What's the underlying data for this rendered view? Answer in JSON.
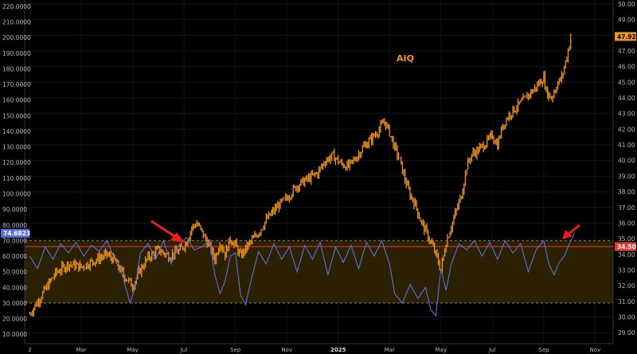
{
  "chart_data": {
    "type": "line",
    "ticker": "AIQ",
    "left_axis": {
      "ticks": [
        "220.0000",
        "210.0000",
        "200.0000",
        "190.0000",
        "180.0000",
        "170.0000",
        "160.0000",
        "150.0000",
        "140.0000",
        "130.0000",
        "120.0000",
        "110.0000",
        "100.0000",
        "90.0000",
        "80.0000",
        "70.0000",
        "60.0000",
        "50.0000",
        "40.0000",
        "30.0000",
        "20.0000",
        "10.0000"
      ],
      "values": [
        220,
        210,
        200,
        190,
        180,
        170,
        160,
        150,
        140,
        130,
        120,
        110,
        100,
        90,
        80,
        70,
        60,
        50,
        40,
        30,
        20,
        10
      ],
      "range": [
        4,
        224
      ]
    },
    "right_axis": {
      "ticks": [
        "50.00",
        "49.00",
        "48.00",
        "47.00",
        "46.00",
        "45.00",
        "44.00",
        "43.00",
        "42.00",
        "41.00",
        "40.00",
        "39.00",
        "38.00",
        "37.00",
        "36.00",
        "35.00",
        "34.00",
        "33.00",
        "32.00",
        "31.00",
        "30.00",
        "29.00"
      ],
      "values": [
        50,
        49,
        48,
        47,
        46,
        45,
        44,
        43,
        42,
        41,
        40,
        39,
        38,
        37,
        36,
        35,
        34,
        33,
        32,
        31,
        30,
        29
      ],
      "range": [
        28.3,
        50.25
      ]
    },
    "x_axis": {
      "labels": [
        "2",
        "Mar",
        "May",
        "Jul",
        "Sep",
        "Nov",
        "2025",
        "Mar",
        "May",
        "Jul",
        "Sep",
        "Nov"
      ],
      "positions": [
        0.0,
        2.0,
        4.0,
        6.0,
        8.0,
        10.0,
        12.0,
        14.0,
        16.0,
        18.0,
        20.0,
        22.0
      ],
      "range": [
        -0.2,
        22.7
      ]
    },
    "badges": {
      "price_last": "47.92",
      "level_right": "34.50",
      "rsi_last": "74.6823"
    },
    "levels": {
      "horizontal_line_right": 34.5,
      "band_upper_left": 70,
      "band_lower_left": 30
    },
    "price_series": {
      "axis": "right",
      "color": "#f0941e",
      "points": [
        [
          0.0,
          30.2
        ],
        [
          0.5,
          31.5
        ],
        [
          1.0,
          32.8
        ],
        [
          1.5,
          33.4
        ],
        [
          2.0,
          33.2
        ],
        [
          2.5,
          33.6
        ],
        [
          3.0,
          34.0
        ],
        [
          3.3,
          33.6
        ],
        [
          3.6,
          32.8
        ],
        [
          4.0,
          32.0
        ],
        [
          4.3,
          33.0
        ],
        [
          4.6,
          33.8
        ],
        [
          5.0,
          34.3
        ],
        [
          5.4,
          33.9
        ],
        [
          5.8,
          34.2
        ],
        [
          6.1,
          34.8
        ],
        [
          6.3,
          35.7
        ],
        [
          6.5,
          36.0
        ],
        [
          6.7,
          35.4
        ],
        [
          7.0,
          34.5
        ],
        [
          7.2,
          33.7
        ],
        [
          7.4,
          34.8
        ],
        [
          7.6,
          34.0
        ],
        [
          7.8,
          35.0
        ],
        [
          8.0,
          34.6
        ],
        [
          8.2,
          33.9
        ],
        [
          8.5,
          34.6
        ],
        [
          8.9,
          35.4
        ],
        [
          9.2,
          36.2
        ],
        [
          9.6,
          37.0
        ],
        [
          10.0,
          37.6
        ],
        [
          10.4,
          38.4
        ],
        [
          10.8,
          38.8
        ],
        [
          11.2,
          39.2
        ],
        [
          11.5,
          40.0
        ],
        [
          11.8,
          40.3
        ],
        [
          12.1,
          39.8
        ],
        [
          12.4,
          39.6
        ],
        [
          12.7,
          40.2
        ],
        [
          13.0,
          40.9
        ],
        [
          13.3,
          41.4
        ],
        [
          13.6,
          42.0
        ],
        [
          13.8,
          42.5
        ],
        [
          14.0,
          41.8
        ],
        [
          14.2,
          40.8
        ],
        [
          14.4,
          40.0
        ],
        [
          14.6,
          38.8
        ],
        [
          14.8,
          37.8
        ],
        [
          15.0,
          37.2
        ],
        [
          15.2,
          36.2
        ],
        [
          15.4,
          35.5
        ],
        [
          15.6,
          34.8
        ],
        [
          15.8,
          34.0
        ],
        [
          16.0,
          33.0
        ],
        [
          16.2,
          34.8
        ],
        [
          16.4,
          35.8
        ],
        [
          16.6,
          36.8
        ],
        [
          16.8,
          37.8
        ],
        [
          17.0,
          39.6
        ],
        [
          17.2,
          40.4
        ],
        [
          17.4,
          40.6
        ],
        [
          17.6,
          40.9
        ],
        [
          17.8,
          41.2
        ],
        [
          18.0,
          41.6
        ],
        [
          18.2,
          41.0
        ],
        [
          18.4,
          42.2
        ],
        [
          18.6,
          42.8
        ],
        [
          18.8,
          43.2
        ],
        [
          19.0,
          43.5
        ],
        [
          19.2,
          43.8
        ],
        [
          19.4,
          44.2
        ],
        [
          19.6,
          44.5
        ],
        [
          19.8,
          44.9
        ],
        [
          20.0,
          45.3
        ],
        [
          20.1,
          44.4
        ],
        [
          20.3,
          44.0
        ],
        [
          20.5,
          44.8
        ],
        [
          20.7,
          45.3
        ],
        [
          20.85,
          46.3
        ],
        [
          20.95,
          47.0
        ],
        [
          21.05,
          47.92
        ]
      ]
    },
    "rsi_series": {
      "axis": "left",
      "color": "#5b6ee1",
      "points": [
        [
          0.0,
          60
        ],
        [
          0.3,
          52
        ],
        [
          0.6,
          66
        ],
        [
          0.9,
          58
        ],
        [
          1.2,
          68
        ],
        [
          1.5,
          62
        ],
        [
          1.8,
          69
        ],
        [
          2.1,
          60
        ],
        [
          2.4,
          67
        ],
        [
          2.7,
          63
        ],
        [
          3.0,
          70
        ],
        [
          3.3,
          58
        ],
        [
          3.6,
          48
        ],
        [
          3.9,
          30
        ],
        [
          4.1,
          40
        ],
        [
          4.3,
          62
        ],
        [
          4.6,
          68
        ],
        [
          4.9,
          58
        ],
        [
          5.2,
          70
        ],
        [
          5.5,
          55
        ],
        [
          5.8,
          67
        ],
        [
          6.1,
          72
        ],
        [
          6.4,
          64
        ],
        [
          6.7,
          66
        ],
        [
          7.0,
          70
        ],
        [
          7.2,
          48
        ],
        [
          7.4,
          36
        ],
        [
          7.6,
          44
        ],
        [
          7.8,
          60
        ],
        [
          8.0,
          62
        ],
        [
          8.2,
          35
        ],
        [
          8.4,
          29
        ],
        [
          8.6,
          44
        ],
        [
          8.9,
          63
        ],
        [
          9.2,
          55
        ],
        [
          9.5,
          68
        ],
        [
          9.8,
          58
        ],
        [
          10.1,
          66
        ],
        [
          10.4,
          50
        ],
        [
          10.7,
          67
        ],
        [
          11.0,
          58
        ],
        [
          11.3,
          69
        ],
        [
          11.6,
          48
        ],
        [
          11.9,
          66
        ],
        [
          12.2,
          56
        ],
        [
          12.5,
          67
        ],
        [
          12.8,
          52
        ],
        [
          13.1,
          69
        ],
        [
          13.4,
          60
        ],
        [
          13.7,
          70
        ],
        [
          14.0,
          55
        ],
        [
          14.2,
          36
        ],
        [
          14.5,
          30
        ],
        [
          14.8,
          42
        ],
        [
          15.1,
          33
        ],
        [
          15.4,
          40
        ],
        [
          15.6,
          26
        ],
        [
          15.8,
          22
        ],
        [
          16.0,
          52
        ],
        [
          16.2,
          38
        ],
        [
          16.4,
          55
        ],
        [
          16.7,
          68
        ],
        [
          17.0,
          64
        ],
        [
          17.3,
          70
        ],
        [
          17.6,
          60
        ],
        [
          17.9,
          69
        ],
        [
          18.2,
          58
        ],
        [
          18.5,
          70
        ],
        [
          18.8,
          62
        ],
        [
          19.1,
          68
        ],
        [
          19.4,
          50
        ],
        [
          19.7,
          64
        ],
        [
          20.0,
          70
        ],
        [
          20.2,
          55
        ],
        [
          20.4,
          48
        ],
        [
          20.6,
          56
        ],
        [
          20.8,
          60
        ],
        [
          21.0,
          68
        ],
        [
          21.2,
          74.68
        ]
      ]
    }
  }
}
